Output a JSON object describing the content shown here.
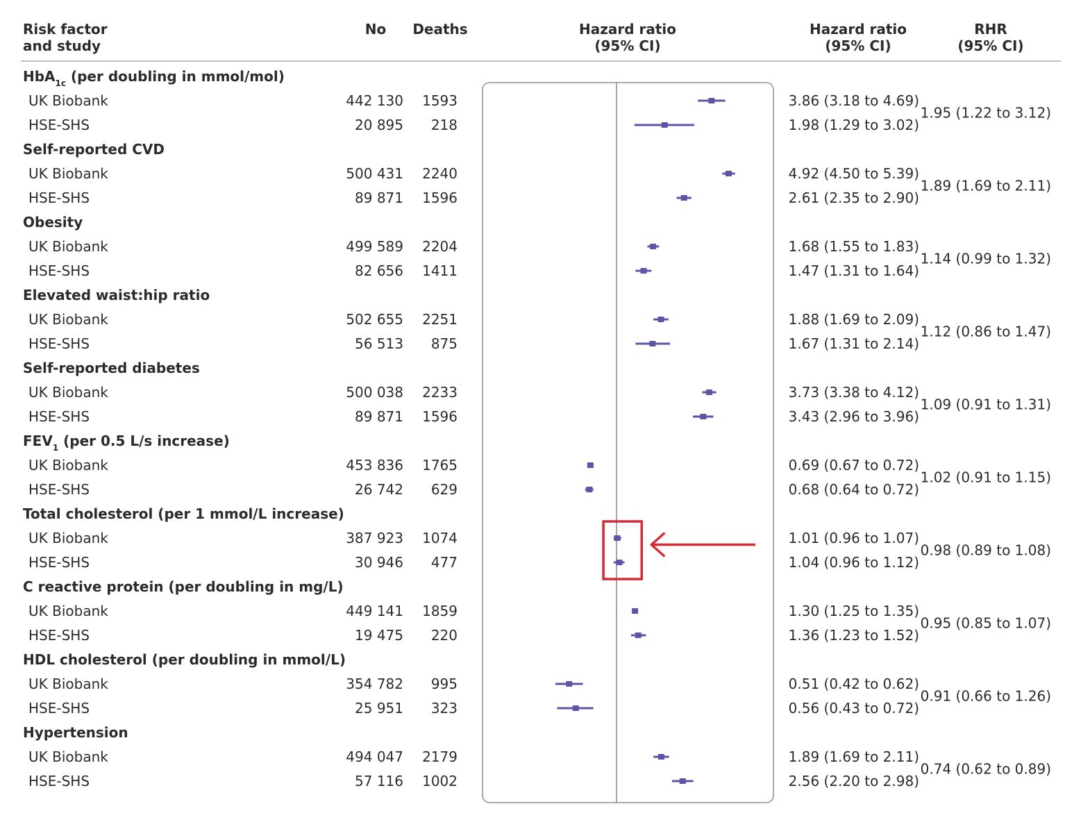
{
  "chart_data": {
    "type": "forest",
    "x_scale": "log",
    "reference_line": 1,
    "columns": {
      "factor": [
        "Risk factor",
        "and study"
      ],
      "no": "No",
      "deaths": "Deaths",
      "plot": [
        "Hazard ratio",
        "(95% CI)"
      ],
      "hr": [
        "Hazard ratio",
        "(95% CI)"
      ],
      "rhr": [
        "RHR",
        "(95% CI)"
      ]
    },
    "groups": [
      {
        "name": "HbA",
        "name_sub": "1c",
        "name_rest": " (per doubling in mmol/mol)",
        "rhr": "1.95 (1.22 to 3.12)",
        "studies": [
          {
            "study": "UK Biobank",
            "no": "442 130",
            "deaths": "1593",
            "hr_text": "3.86 (3.18 to 4.69)",
            "hr": 3.86,
            "lo": 3.18,
            "hi": 4.69
          },
          {
            "study": "HSE-SHS",
            "no": "20 895",
            "deaths": "218",
            "hr_text": "1.98 (1.29 to 3.02)",
            "hr": 1.98,
            "lo": 1.29,
            "hi": 3.02
          }
        ]
      },
      {
        "name": "Self-reported CVD",
        "rhr": "1.89 (1.69 to 2.11)",
        "studies": [
          {
            "study": "UK Biobank",
            "no": "500 431",
            "deaths": "2240",
            "hr_text": "4.92 (4.50 to 5.39)",
            "hr": 4.92,
            "lo": 4.5,
            "hi": 5.39
          },
          {
            "study": "HSE-SHS",
            "no": "89 871",
            "deaths": "1596",
            "hr_text": "2.61 (2.35 to 2.90)",
            "hr": 2.61,
            "lo": 2.35,
            "hi": 2.9
          }
        ]
      },
      {
        "name": "Obesity",
        "rhr": "1.14 (0.99 to 1.32)",
        "studies": [
          {
            "study": "UK Biobank",
            "no": "499 589",
            "deaths": "2204",
            "hr_text": "1.68 (1.55 to 1.83)",
            "hr": 1.68,
            "lo": 1.55,
            "hi": 1.83
          },
          {
            "study": "HSE-SHS",
            "no": "82 656",
            "deaths": "1411",
            "hr_text": "1.47 (1.31 to 1.64)",
            "hr": 1.47,
            "lo": 1.31,
            "hi": 1.64
          }
        ]
      },
      {
        "name": "Elevated waist:hip ratio",
        "rhr": "1.12 (0.86 to 1.47)",
        "studies": [
          {
            "study": "UK Biobank",
            "no": "502 655",
            "deaths": "2251",
            "hr_text": "1.88 (1.69 to 2.09)",
            "hr": 1.88,
            "lo": 1.69,
            "hi": 2.09
          },
          {
            "study": "HSE-SHS",
            "no": "56 513",
            "deaths": "875",
            "hr_text": "1.67 (1.31 to 2.14)",
            "hr": 1.67,
            "lo": 1.31,
            "hi": 2.14
          }
        ]
      },
      {
        "name": "Self-reported diabetes",
        "rhr": "1.09 (0.91 to 1.31)",
        "studies": [
          {
            "study": "UK Biobank",
            "no": "500 038",
            "deaths": "2233",
            "hr_text": "3.73 (3.38 to 4.12)",
            "hr": 3.73,
            "lo": 3.38,
            "hi": 4.12
          },
          {
            "study": "HSE-SHS",
            "no": "89 871",
            "deaths": "1596",
            "hr_text": "3.43 (2.96 to 3.96)",
            "hr": 3.43,
            "lo": 2.96,
            "hi": 3.96
          }
        ]
      },
      {
        "name": "FEV",
        "name_sub": "1",
        "name_rest": " (per 0.5 L/s increase)",
        "rhr": "1.02 (0.91 to 1.15)",
        "studies": [
          {
            "study": "UK Biobank",
            "no": "453 836",
            "deaths": "1765",
            "hr_text": "0.69 (0.67 to 0.72)",
            "hr": 0.69,
            "lo": 0.67,
            "hi": 0.72
          },
          {
            "study": "HSE-SHS",
            "no": "26 742",
            "deaths": "629",
            "hr_text": "0.68 (0.64 to 0.72)",
            "hr": 0.68,
            "lo": 0.64,
            "hi": 0.72
          }
        ]
      },
      {
        "name": "Total cholesterol (per 1 mmol/L increase)",
        "rhr": "0.98 (0.89 to 1.08)",
        "studies": [
          {
            "study": "UK Biobank",
            "no": "387 923",
            "deaths": "1074",
            "hr_text": "1.01 (0.96 to 1.07)",
            "hr": 1.01,
            "lo": 0.96,
            "hi": 1.07
          },
          {
            "study": "HSE-SHS",
            "no": "30 946",
            "deaths": "477",
            "hr_text": "1.04 (0.96 to 1.12)",
            "hr": 1.04,
            "lo": 0.96,
            "hi": 1.12
          }
        ]
      },
      {
        "name": "C reactive protein (per doubling in mg/L)",
        "rhr": "0.95 (0.85 to 1.07)",
        "studies": [
          {
            "study": "UK Biobank",
            "no": "449 141",
            "deaths": "1859",
            "hr_text": "1.30 (1.25 to 1.35)",
            "hr": 1.3,
            "lo": 1.25,
            "hi": 1.35
          },
          {
            "study": "HSE-SHS",
            "no": "19 475",
            "deaths": "220",
            "hr_text": "1.36 (1.23 to 1.52)",
            "hr": 1.36,
            "lo": 1.23,
            "hi": 1.52
          }
        ]
      },
      {
        "name": "HDL cholesterol (per doubling in mmol/L)",
        "rhr": "0.91 (0.66 to 1.26)",
        "studies": [
          {
            "study": "UK Biobank",
            "no": "354 782",
            "deaths": "995",
            "hr_text": "0.51 (0.42 to 0.62)",
            "hr": 0.51,
            "lo": 0.42,
            "hi": 0.62
          },
          {
            "study": "HSE-SHS",
            "no": "25 951",
            "deaths": "323",
            "hr_text": "0.56 (0.43 to 0.72)",
            "hr": 0.56,
            "lo": 0.43,
            "hi": 0.72
          }
        ]
      },
      {
        "name": "Hypertension",
        "rhr": "0.74 (0.62 to 0.89)",
        "studies": [
          {
            "study": "UK Biobank",
            "no": "494 047",
            "deaths": "2179",
            "hr_text": "1.89 (1.69 to 2.11)",
            "hr": 1.89,
            "lo": 1.69,
            "hi": 2.11
          },
          {
            "study": "HSE-SHS",
            "no": "57 116",
            "deaths": "1002",
            "hr_text": "2.56 (2.20 to 2.98)",
            "hr": 2.56,
            "lo": 2.2,
            "hi": 2.98
          }
        ]
      }
    ],
    "highlight": {
      "group": "Total cholesterol (per 1 mmol/L increase)",
      "shape": "box",
      "arrow": true
    }
  },
  "colors": {
    "text": "#2b2b2b",
    "marker": "#5a55a6",
    "highlight": "#d42a36",
    "panel_border": "#a9a9a9",
    "reference_line": "#888888",
    "header_rule": "#bdbdbd"
  }
}
